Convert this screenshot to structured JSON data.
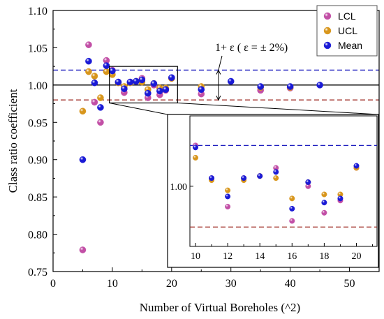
{
  "chart_data": {
    "type": "scatter",
    "xlabel": "Number of Virtual Boreholes (^2)",
    "ylabel": "Class ratio coefficient",
    "xlim": [
      0,
      55
    ],
    "ylim": [
      0.75,
      1.1
    ],
    "xticks": [
      "0",
      "10",
      "20",
      "30",
      "40",
      "50"
    ],
    "yticks": [
      "0.75",
      "0.80",
      "0.85",
      "0.90",
      "0.95",
      "1.00",
      "1.05",
      "1.10"
    ],
    "reference_lines": [
      {
        "y": 1.0,
        "color": "#000000",
        "style": "solid"
      },
      {
        "y": 1.02,
        "color": "#1f1fbf",
        "style": "dashed"
      },
      {
        "y": 0.98,
        "color": "#a0302a",
        "style": "dashed"
      }
    ],
    "annotation": "1+ ε ( ε = ± 2%)",
    "legend_position": "top-right",
    "series": [
      {
        "name": "LCL",
        "color": "#c24fa6",
        "x": [
          5,
          6,
          7,
          8,
          9,
          10,
          11,
          12,
          13,
          14,
          15,
          16,
          17,
          18,
          19,
          20,
          25,
          35,
          40
        ],
        "y": [
          0.779,
          1.054,
          0.977,
          0.95,
          1.033,
          1.02,
          1.004,
          0.99,
          1.004,
          1.005,
          1.009,
          0.983,
          1.0,
          0.987,
          0.993,
          1.009,
          0.988,
          0.993,
          0.996
        ]
      },
      {
        "name": "UCL",
        "color": "#d8961c",
        "x": [
          5,
          6,
          7,
          8,
          9,
          10,
          11,
          12,
          13,
          14,
          15,
          16,
          17,
          18,
          19,
          20,
          25,
          35,
          40
        ],
        "y": [
          0.965,
          1.018,
          1.012,
          0.983,
          1.018,
          1.014,
          1.003,
          0.998,
          1.003,
          1.005,
          1.004,
          0.994,
          1.002,
          0.996,
          0.996,
          1.009,
          0.998,
          0.997,
          0.997
        ]
      },
      {
        "name": "Mean",
        "color": "#1a1ad6",
        "x": [
          5,
          6,
          7,
          8,
          9,
          10,
          11,
          12,
          13,
          14,
          15,
          16,
          17,
          18,
          19,
          20,
          25,
          30,
          35,
          40,
          45
        ],
        "y": [
          0.9,
          1.032,
          1.003,
          0.97,
          1.026,
          1.019,
          1.004,
          0.995,
          1.004,
          1.005,
          1.007,
          0.989,
          1.002,
          0.992,
          0.994,
          1.01,
          0.994,
          1.005,
          0.998,
          0.998,
          1.0
        ]
      }
    ],
    "inset": {
      "xlim": [
        9,
        21
      ],
      "xticks": [
        "10",
        "12",
        "14",
        "16",
        "18",
        "20"
      ],
      "yticks": [
        "1.00"
      ],
      "source_box_x": [
        9.5,
        21
      ],
      "source_box_y": [
        0.976,
        1.025
      ]
    }
  }
}
